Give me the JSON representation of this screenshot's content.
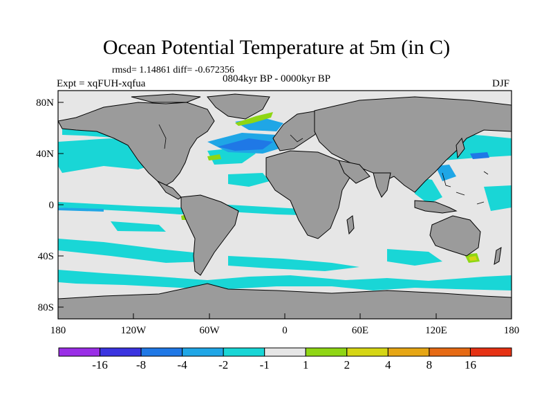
{
  "title": "Ocean Potential Temperature at 5m (in C)",
  "stats": "rmsd= 1.14861 diff= -0.672356",
  "period": "0804kyr BP - 0000kyr BP",
  "experiment": "Expt = xqFUH-xqfua",
  "season": "DJF",
  "lat_ticks": [
    "80N",
    "40N",
    "0",
    "40S",
    "80S"
  ],
  "lon_ticks": [
    "180",
    "120W",
    "60W",
    "0",
    "60E",
    "120E",
    "180"
  ],
  "colorbar": {
    "labels": [
      "-16",
      "-8",
      "-4",
      "-2",
      "-1",
      "1",
      "2",
      "4",
      "8",
      "16"
    ],
    "colors": [
      "#9a2ee6",
      "#3b34e0",
      "#1f78e6",
      "#1fa6e6",
      "#19d6d6",
      "#e6e6e6",
      "#8fd614",
      "#d6d614",
      "#e6a614",
      "#e66a14",
      "#e63214"
    ]
  },
  "colors": {
    "land": "#9b9b9b",
    "ocean_neutral": "#e6e6e6",
    "cool_light": "#19d6d6",
    "cool_mid": "#1fa6e6",
    "cool_strong": "#1f78e6",
    "warm": "#8fd614",
    "warm_mid": "#d6d614"
  }
}
